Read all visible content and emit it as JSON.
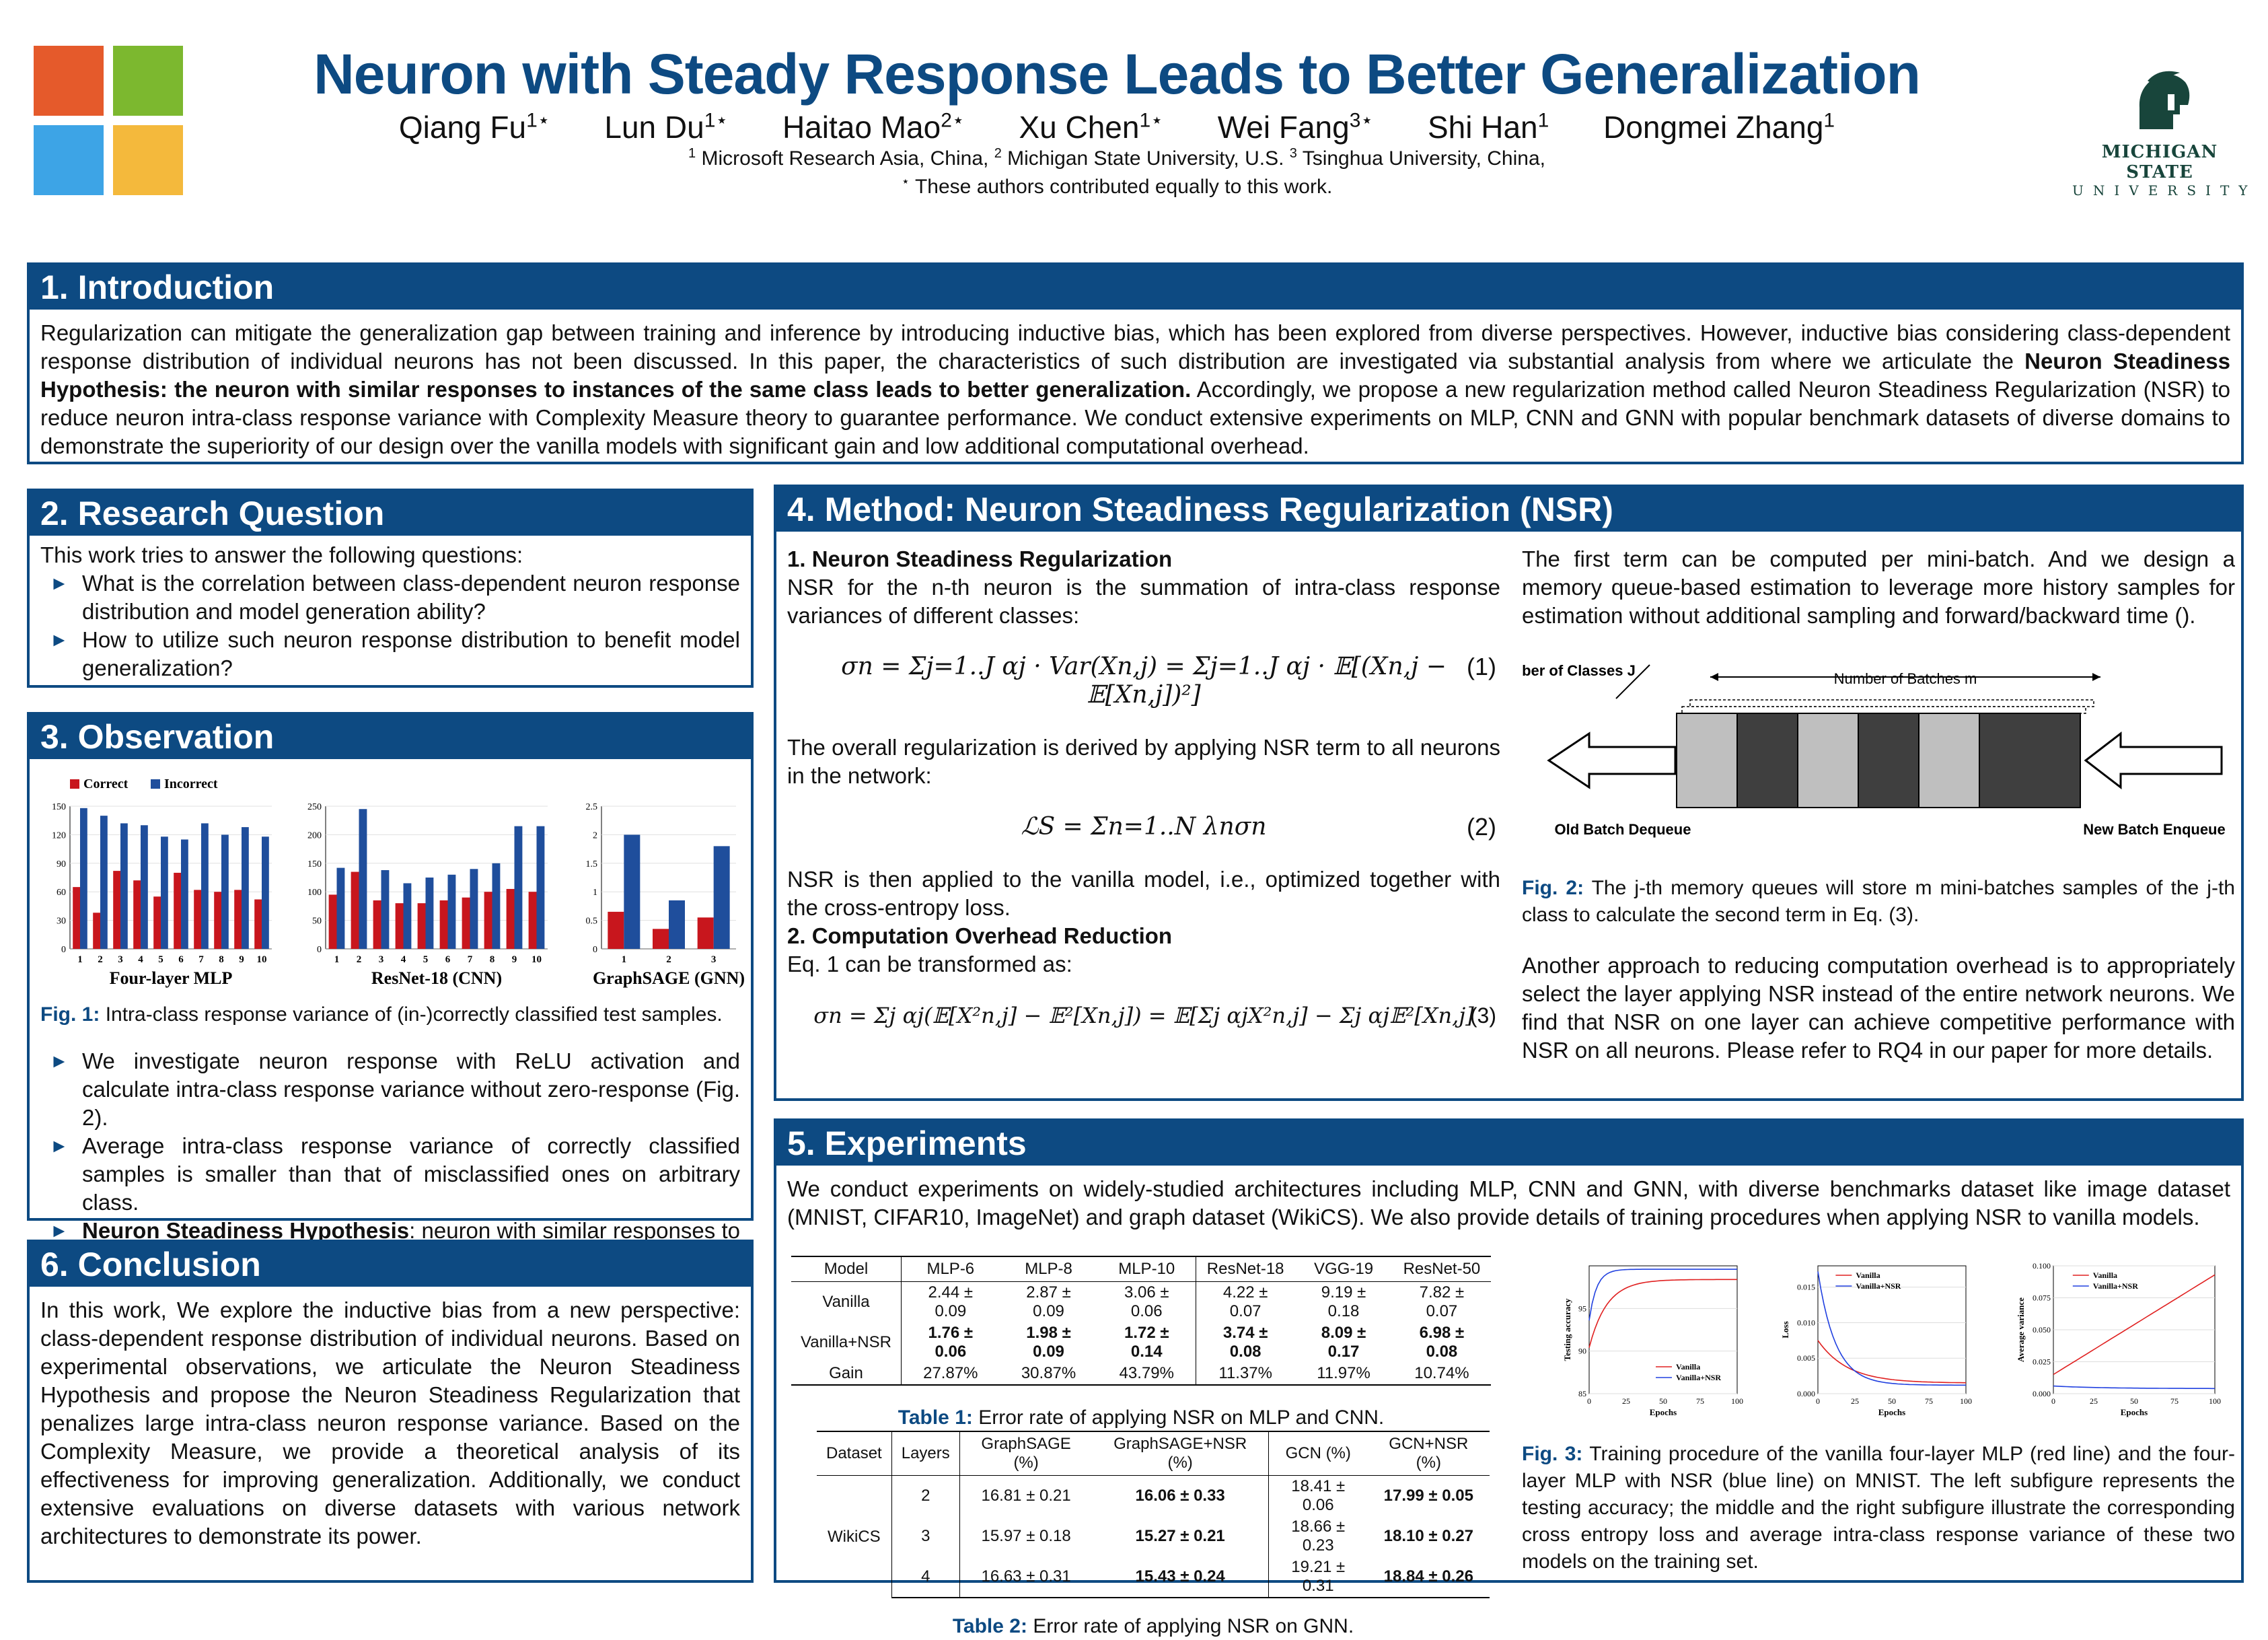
{
  "header": {
    "title": "Neuron with Steady Response Leads to Better Generalization",
    "authors": [
      {
        "name": "Qiang Fu",
        "sup": "1⋆"
      },
      {
        "name": "Lun Du",
        "sup": "1⋆"
      },
      {
        "name": "Haitao Mao",
        "sup": "2⋆"
      },
      {
        "name": "Xu Chen",
        "sup": "1⋆"
      },
      {
        "name": "Wei Fang",
        "sup": "3⋆"
      },
      {
        "name": "Shi Han",
        "sup": "1"
      },
      {
        "name": "Dongmei Zhang",
        "sup": "1"
      }
    ],
    "affil_1_sup": "1",
    "affil_1": "Microsoft Research Asia, China,",
    "affil_2_sup": "2",
    "affil_2": "Michigan State University, U.S.",
    "affil_3_sup": "3",
    "affil_3": "Tsinghua University, China,",
    "equal_sup": "⋆",
    "equal": "These authors contributed equally to this work.",
    "msu_name": "MICHIGAN STATE",
    "msu_sub": "UNIVERSITY",
    "colors": {
      "primary": "#0d4a82",
      "ms_red": "#e55a2b",
      "ms_green": "#7cb82f",
      "ms_blue": "#3da4e6",
      "ms_yellow": "#f4b93c",
      "msu_green": "#18453b"
    }
  },
  "intro": {
    "heading": "1. Introduction",
    "text_a": "Regularization can mitigate the generalization gap between training and inference by introducing inductive bias, which has been explored from diverse perspectives.  However, inductive bias considering class-dependent response distribution of individual neurons has not been discussed.  In this paper, the characteristics of such distribution are investigated via substantial analysis from where we articulate the",
    "text_bold": "Neuron Steadiness Hypothesis:  the neuron with similar responses to instances of the same class leads to better generalization.",
    "text_b": "Accordingly, we propose a new regularization method called Neuron Steadiness Regularization (NSR) to reduce neuron intra-class response variance with Complexity Measure theory to guarantee performance.  We conduct extensive experiments on MLP, CNN and GNN with popular benchmark datasets of diverse domains to demonstrate the superiority of our design over the vanilla models with significant gain and low additional computational overhead."
  },
  "rq": {
    "heading": "2. Research Question",
    "lead": "This work tries to answer the following questions:",
    "items": [
      "What is the correlation between class-dependent neuron response distribution and model generation ability?",
      "How to utilize such neuron response distribution to benefit model generalization?"
    ]
  },
  "obs": {
    "heading": "3. Observation",
    "fig_label": "Fig. 1:",
    "fig_caption": "Intra-class response variance of (in-)correctly classified test samples.",
    "items": [
      {
        "bold": "",
        "text": "We investigate neuron response with ReLU activation and calculate intra-class response variance without zero-response (Fig. 2)."
      },
      {
        "bold": "",
        "text": "Average intra-class response variance of correctly classified samples is smaller than that of misclassified ones on arbitrary class."
      },
      {
        "bold": "Neuron Steadiness Hypothesis",
        "text": ": neuron with similar responses to instances of the same class, i.e., smaller neuron intra-class response variance can lead to better generalization."
      }
    ]
  },
  "conclusion": {
    "heading": "6. Conclusion",
    "text": "In this work, We explore the inductive bias from a new perspective: class-dependent response distribution of individual neurons.  Based on experimental observations, we articulate the Neuron Steadiness Hypothesis and propose the Neuron Steadiness Regularization that penalizes large intra-class neuron response variance.  Based on the Complexity Measure, we provide a theoretical analysis of its effectiveness for improving generalization.  Additionally, we conduct extensive evaluations on diverse datasets with various network architectures to demonstrate its power."
  },
  "method": {
    "heading": "4. Method: Neuron Steadiness Regularization (NSR)",
    "sub1": "1. Neuron Steadiness Regularization",
    "p1": "NSR for the n-th neuron is the summation of intra-class response variances of different classes:",
    "eq1": "σn = Σj=1..J αj · Var(Xn,j) = Σj=1..J αj · 𝔼[(Xn,j − 𝔼[Xn,j])²]",
    "eq1_num": "(1)",
    "p2": "The overall regularization is derived by applying NSR term to all neurons in the network:",
    "eq2": "ℒS = Σn=1..N λnσn",
    "eq2_num": "(2)",
    "p3": "NSR is then applied to the vanilla model, i.e., optimized together with the cross-entropy loss.",
    "sub2": "2. Computation Overhead Reduction",
    "p4": "Eq.  1 can be transformed as:",
    "eq3": "σn = Σj αj(𝔼[X²n,j] − 𝔼²[Xn,j]) = 𝔼[Σj αjX²n,j] − Σj αj𝔼²[Xn,j]",
    "eq3_num": "(3)",
    "r1": "The first term can be computed per mini-batch.  And we design a memory queue-based estimation to leverage more history samples for estimation without additional sampling and forward/backward time ().",
    "fig2": {
      "classes_label": "Number of Classes J",
      "batches_label": "Number of Batches m",
      "old_label": "Old Batch Dequeue",
      "new_label": "New Batch Enqueue"
    },
    "fig2_label": "Fig. 2:",
    "fig2_caption": "The j-th memory queues will store m mini-batches samples of the j-th class to calculate the second term in Eq. (3).",
    "r2": "Another approach to reducing computation overhead is to appropriately select the layer applying NSR instead of the entire network neurons.  We find that NSR on one layer can achieve competitive performance with NSR on all neurons.  Please refer to RQ4 in our paper for more details."
  },
  "exp": {
    "heading": "5. Experiments",
    "text": "We conduct experiments on widely-studied architectures including MLP, CNN and GNN, with diverse benchmarks dataset like image dataset (MNIST, CIFAR10, ImageNet) and graph dataset (WikiCS). We also provide details of training procedures when applying NSR to vanilla models.",
    "table1": {
      "header": [
        "Model",
        "MLP-6",
        "MLP-8",
        "MLP-10",
        "ResNet-18",
        "VGG-19",
        "ResNet-50"
      ],
      "rows": [
        [
          "Vanilla",
          "2.44 ± 0.09",
          "2.87 ± 0.09",
          "3.06 ± 0.06",
          "4.22 ± 0.07",
          "9.19 ± 0.18",
          "7.82 ± 0.07"
        ],
        [
          "Vanilla+NSR",
          "1.76 ± 0.06",
          "1.98 ± 0.09",
          "1.72 ± 0.14",
          "3.74 ± 0.08",
          "8.09 ± 0.17",
          "6.98 ± 0.08"
        ],
        [
          "Gain",
          "27.87%",
          "30.87%",
          "43.79%",
          "11.37%",
          "11.97%",
          "10.74%"
        ]
      ],
      "label": "Table 1:",
      "caption": "Error rate of applying NSR on MLP and CNN."
    },
    "table2": {
      "header": [
        "Dataset",
        "Layers",
        "GraphSAGE (%)",
        "GraphSAGE+NSR (%)",
        "GCN (%)",
        "GCN+NSR (%)"
      ],
      "dataset": "WikiCS",
      "rows": [
        [
          "2",
          "16.81 ± 0.21",
          "16.06 ± 0.33",
          "18.41 ± 0.06",
          "17.99 ± 0.05"
        ],
        [
          "3",
          "15.97 ± 0.18",
          "15.27 ± 0.21",
          "18.66 ± 0.23",
          "18.10 ± 0.27"
        ],
        [
          "4",
          "16.63 ± 0.31",
          "15.43 ± 0.24",
          "19.21 ± 0.31",
          "18.84 ± 0.26"
        ]
      ],
      "label": "Table 2:",
      "caption": "Error rate of applying NSR on GNN."
    },
    "fig3_label": "Fig. 3:",
    "fig3_caption": "Training procedure of the vanilla four-layer MLP (red line) and the four-layer MLP with NSR (blue line) on MNIST. The left subfigure represents the testing accuracy; the middle and the right subfigure illustrate the corresponding cross entropy loss and average intra-class response variance of these two models on the training set."
  },
  "chart_data": [
    {
      "type": "bar",
      "title": "Four-layer MLP",
      "categories": [
        "1",
        "2",
        "3",
        "4",
        "5",
        "6",
        "7",
        "8",
        "9",
        "10"
      ],
      "series": [
        {
          "name": "Correct",
          "values": [
            65,
            38,
            82,
            72,
            55,
            80,
            62,
            60,
            62,
            52
          ]
        },
        {
          "name": "Incorrect",
          "values": [
            148,
            140,
            132,
            130,
            118,
            115,
            132,
            120,
            128,
            118
          ]
        }
      ],
      "ylim": [
        0,
        150
      ],
      "yticks": [
        "0",
        "30",
        "60",
        "90",
        "120",
        "150"
      ],
      "colors": [
        "#c8161d",
        "#1f4e9c"
      ]
    },
    {
      "type": "bar",
      "title": "ResNet-18 (CNN)",
      "categories": [
        "1",
        "2",
        "3",
        "4",
        "5",
        "6",
        "7",
        "8",
        "9",
        "10"
      ],
      "series": [
        {
          "name": "Correct",
          "values": [
            95,
            135,
            85,
            80,
            80,
            85,
            90,
            100,
            105,
            100
          ]
        },
        {
          "name": "Incorrect",
          "values": [
            142,
            245,
            138,
            115,
            125,
            130,
            140,
            150,
            215,
            215
          ]
        }
      ],
      "ylim": [
        0,
        250
      ],
      "yticks": [
        "0",
        "50",
        "100",
        "150",
        "200",
        "250"
      ],
      "colors": [
        "#c8161d",
        "#1f4e9c"
      ]
    },
    {
      "type": "bar",
      "title": "GraphSAGE (GNN)",
      "categories": [
        "1",
        "2",
        "3"
      ],
      "series": [
        {
          "name": "Correct",
          "values": [
            0.65,
            0.35,
            0.55
          ]
        },
        {
          "name": "Incorrect",
          "values": [
            2.0,
            0.85,
            1.8
          ]
        }
      ],
      "ylim": [
        0,
        2.5
      ],
      "yticks": [
        "0",
        "0.5",
        "1",
        "1.5",
        "2",
        "2.5"
      ],
      "colors": [
        "#c8161d",
        "#1f4e9c"
      ]
    },
    {
      "type": "line",
      "title": "",
      "xlabel": "Epochs",
      "ylabel": "Testing accuracy",
      "xticks": [
        "0",
        "25",
        "50",
        "75",
        "100"
      ],
      "yticks": [
        "85",
        "90",
        "95"
      ],
      "legend": [
        "Vanilla",
        "Vanilla+NSR"
      ],
      "xlim": [
        0,
        100
      ],
      "ylim": [
        85,
        100
      ]
    },
    {
      "type": "line",
      "title": "",
      "xlabel": "Epochs",
      "ylabel": "Loss",
      "xticks": [
        "0",
        "25",
        "50",
        "75",
        "100"
      ],
      "yticks": [
        "0.000",
        "0.005",
        "0.010",
        "0.015"
      ],
      "legend": [
        "Vanilla",
        "Vanilla+NSR"
      ],
      "xlim": [
        0,
        100
      ],
      "ylim": [
        0,
        0.018
      ]
    },
    {
      "type": "line",
      "title": "",
      "xlabel": "Epochs",
      "ylabel": "Average variance",
      "xticks": [
        "0",
        "25",
        "50",
        "75",
        "100"
      ],
      "yticks": [
        "0.000",
        "0.025",
        "0.050",
        "0.075",
        "0.100"
      ],
      "legend": [
        "Vanilla",
        "Vanilla+NSR"
      ],
      "xlim": [
        0,
        100
      ],
      "ylim": [
        0,
        0.1
      ]
    }
  ]
}
